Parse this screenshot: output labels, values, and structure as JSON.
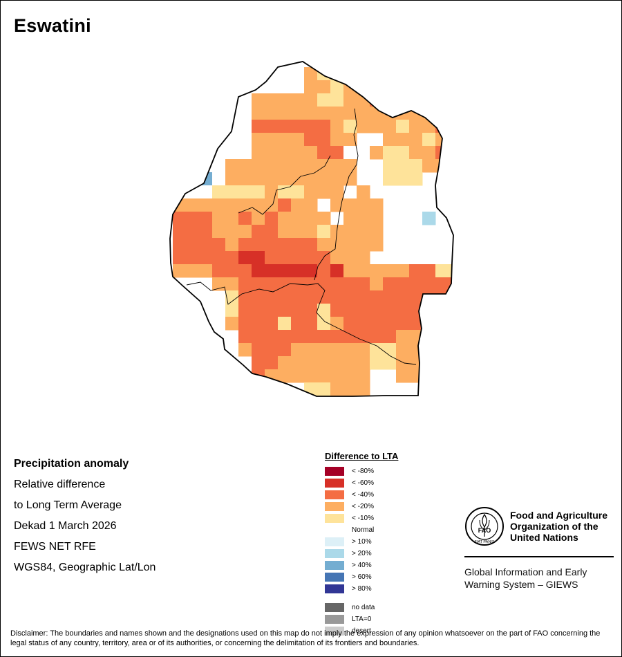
{
  "map": {
    "title": "Eswatini",
    "palette": {
      "r1": "#fee39a",
      "r2": "#fdae61",
      "r3": "#f46d43",
      "r4": "#d73027",
      "r5": "#a50026",
      "b1": "#ddf0f7",
      "b2": "#abd9e9",
      "b3": "#74add1",
      "b4": "#4575b4",
      "b5": "#313695",
      "normal": "#ffffff"
    }
  },
  "info": {
    "heading": "Precipitation anomaly",
    "line1": "Relative difference",
    "line2": "to Long Term Average",
    "period": "Dekad 1 March 2026",
    "source": "FEWS NET RFE",
    "projection": "WGS84, Geographic Lat/Lon"
  },
  "legend": {
    "title": "Difference to LTA",
    "items": [
      {
        "label": "< -80%",
        "color": "#a50026"
      },
      {
        "label": "< -60%",
        "color": "#d73027"
      },
      {
        "label": "< -40%",
        "color": "#f46d43"
      },
      {
        "label": "< -20%",
        "color": "#fdae61"
      },
      {
        "label": "< -10%",
        "color": "#fee39a"
      },
      {
        "label": "Normal",
        "color": ""
      },
      {
        "label": "> 10%",
        "color": "#ddf0f7"
      },
      {
        "label": "> 20%",
        "color": "#abd9e9"
      },
      {
        "label": "> 40%",
        "color": "#74add1"
      },
      {
        "label": "> 60%",
        "color": "#4575b4"
      },
      {
        "label": "> 80%",
        "color": "#313695"
      }
    ],
    "extra": [
      {
        "label": "no data",
        "color": "#666666"
      },
      {
        "label": "LTA=0",
        "color": "#999999"
      },
      {
        "label": "desert",
        "color": "#cccccc"
      }
    ]
  },
  "org": {
    "name_line1": "Food and Agriculture",
    "name_line2": "Organization of the",
    "name_line3": "United Nations",
    "logo_text": "FAO",
    "logo_motto": "FIAT PANIS",
    "system_line1": "Global Information and Early",
    "system_line2": "Warning System – GIEWS"
  },
  "disclaimer": "Disclaimer: The boundaries and names shown and the designations used on this map do not imply the expression of any opinion whatsoever on the part of FAO concerning the legal status of any country, territory, area or of its authorities, or concerning the delimitation of its frontiers and boundaries."
}
